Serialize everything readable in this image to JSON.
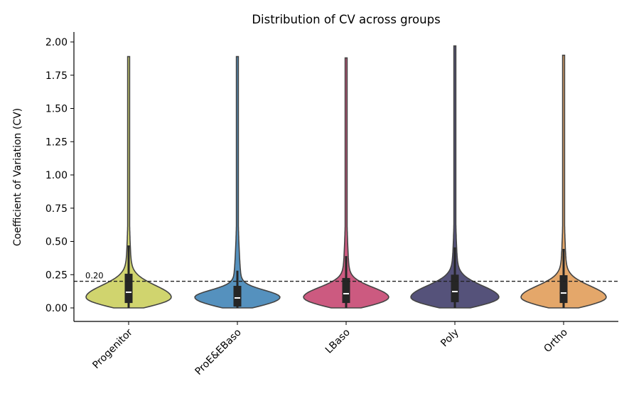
{
  "chart_data": {
    "type": "violin",
    "title": "Distribution of CV across groups",
    "xlabel": "",
    "ylabel": "Coefficient of Variation (CV)",
    "ylim": [
      -0.1,
      2.07
    ],
    "yticks": [
      "0.00",
      "0.25",
      "0.50",
      "0.75",
      "1.00",
      "1.25",
      "1.50",
      "1.75",
      "2.00"
    ],
    "categories": [
      "Progenitor",
      "ProE&EBaso",
      "LBaso",
      "Poly",
      "Ortho"
    ],
    "colors": [
      "#d0d46e",
      "#5591be",
      "#cc5a80",
      "#55527a",
      "#e4a76a"
    ],
    "series": [
      {
        "category": "Progenitor",
        "min": 0.0,
        "q1": 0.037,
        "median": 0.118,
        "q3": 0.257,
        "whisker_high": 0.47,
        "max": 1.89
      },
      {
        "category": "ProE&EBaso",
        "min": 0.0,
        "q1": 0.01,
        "median": 0.075,
        "q3": 0.166,
        "whisker_high": 0.28,
        "max": 1.89
      },
      {
        "category": "LBaso",
        "min": 0.0,
        "q1": 0.037,
        "median": 0.107,
        "q3": 0.225,
        "whisker_high": 0.39,
        "max": 1.88
      },
      {
        "category": "Poly",
        "min": 0.0,
        "q1": 0.043,
        "median": 0.123,
        "q3": 0.25,
        "whisker_high": 0.455,
        "max": 1.97
      },
      {
        "category": "Ortho",
        "min": 0.0,
        "q1": 0.037,
        "median": 0.112,
        "q3": 0.246,
        "whisker_high": 0.444,
        "max": 1.9
      }
    ],
    "reference_line": {
      "value": 0.2,
      "label": "0.20",
      "style": "dashed"
    },
    "grid": false,
    "legend": "none"
  }
}
